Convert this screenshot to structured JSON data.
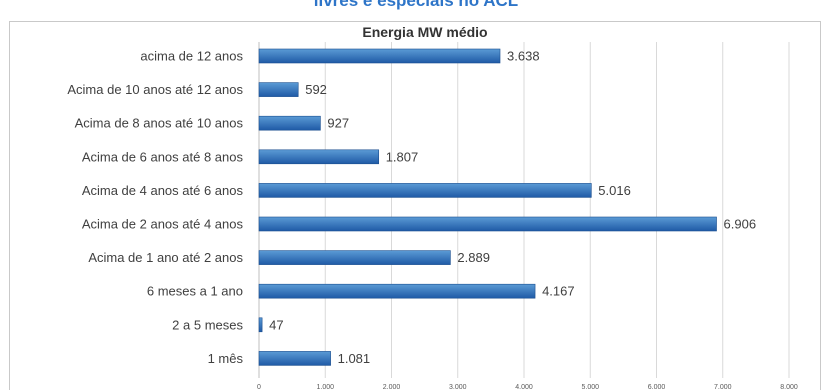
{
  "page": {
    "top_title": "livres e especiais no ACL"
  },
  "colors": {
    "bar_top": "#5b9bd5",
    "bar_bottom": "#1f5aa6",
    "bar_stroke": "#1c4f8f",
    "grid": "#d9d9d9",
    "title_accent": "#2e75c8"
  },
  "chart_data": {
    "type": "bar",
    "orientation": "horizontal",
    "title": "Energia MW médio",
    "xlabel": "",
    "ylabel": "",
    "xlim": [
      0,
      8000
    ],
    "grid": true,
    "categories": [
      "acima de 12 anos",
      "Acima de 10 anos até 12 anos",
      "Acima de 8 anos até 10 anos",
      "Acima de 6 anos até 8 anos",
      "Acima de 4 anos até 6 anos",
      "Acima de 2 anos até 4 anos",
      "Acima de 1 ano até 2 anos",
      "6 meses a 1 ano",
      "2 a 5 meses",
      "1 mês"
    ],
    "values": [
      3638,
      592,
      927,
      1807,
      5016,
      6906,
      2889,
      4167,
      47,
      1081
    ],
    "value_labels": [
      "3.638",
      "592",
      "927",
      "1.807",
      "5.016",
      "6.906",
      "2.889",
      "4.167",
      "47",
      "1.081"
    ],
    "ticks": [
      0,
      1000,
      2000,
      3000,
      4000,
      5000,
      6000,
      7000,
      8000
    ],
    "tick_labels": [
      "0",
      "1.000",
      "2.000",
      "3.000",
      "4.000",
      "5.000",
      "6.000",
      "7.000",
      "8.000"
    ]
  }
}
